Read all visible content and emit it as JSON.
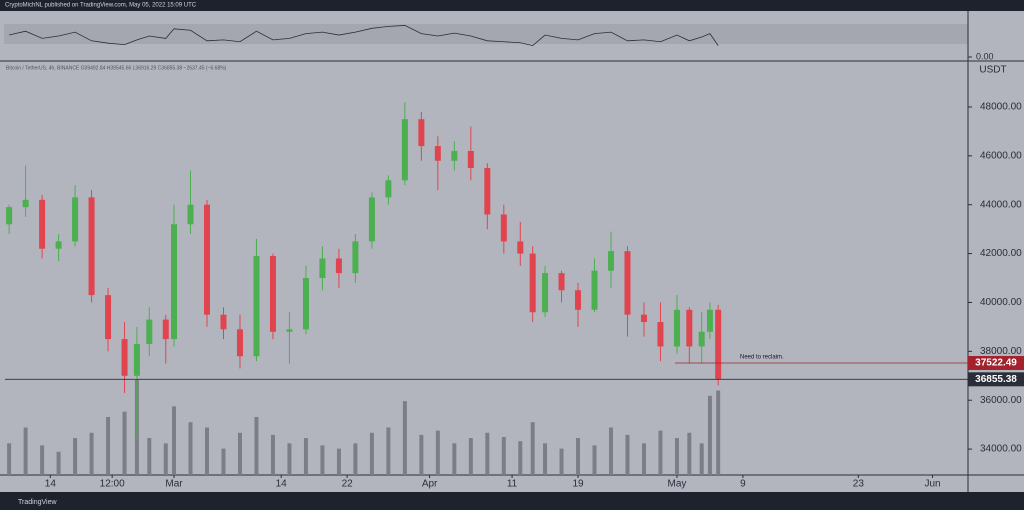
{
  "header": "CryptoMichNL published on TradingView.com, May 05, 2022 15:09 UTC",
  "footer": "TradingView",
  "chart_data": {
    "type": "candlestick",
    "legend": "Bitcoin / TetherUS, 4h, BINANCE  O39492.84  H39545.66  L36916.29  C36855.38  −2637.45 (−6.68%)",
    "y_axis_label": "USDT",
    "up_color": "#4caf50",
    "down_color": "#e0454f",
    "volume_color": "#7b7e86",
    "rsi_color": "#2a2e39",
    "x": [
      9,
      11,
      13,
      15,
      17,
      19,
      21,
      23,
      24.5,
      26,
      28,
      29,
      31,
      33,
      35,
      37,
      39,
      41,
      43,
      45,
      47,
      49,
      51,
      53,
      55,
      57,
      59,
      61,
      63,
      65,
      67,
      69,
      71,
      72.5,
      74,
      76,
      78,
      80,
      82,
      84,
      86,
      88,
      90,
      91.5,
      93,
      94,
      95
    ],
    "ohlc": [
      [
        43200,
        44000,
        42800,
        43900
      ],
      [
        43900,
        45600,
        43500,
        44200
      ],
      [
        44200,
        44400,
        41800,
        42200
      ],
      [
        42200,
        42800,
        41700,
        42500
      ],
      [
        42500,
        44800,
        42300,
        44300
      ],
      [
        44300,
        44600,
        40000,
        40300
      ],
      [
        40300,
        40600,
        38000,
        38500
      ],
      [
        38500,
        39200,
        36300,
        37000
      ],
      [
        37000,
        39000,
        34400,
        38300
      ],
      [
        38300,
        39800,
        37800,
        39300
      ],
      [
        39300,
        39500,
        37500,
        38500
      ],
      [
        38500,
        44000,
        38200,
        43200
      ],
      [
        43200,
        45400,
        42800,
        44000
      ],
      [
        44000,
        44200,
        39000,
        39500
      ],
      [
        39500,
        39800,
        38500,
        38900
      ],
      [
        38900,
        39500,
        37300,
        37800
      ],
      [
        37800,
        42600,
        37600,
        41900
      ],
      [
        41900,
        42000,
        38500,
        38800
      ],
      [
        38800,
        39600,
        37500,
        38900
      ],
      [
        38900,
        41500,
        38700,
        41000
      ],
      [
        41000,
        42300,
        40500,
        41800
      ],
      [
        41800,
        42200,
        40600,
        41200
      ],
      [
        41200,
        42800,
        40800,
        42500
      ],
      [
        42500,
        44500,
        42200,
        44300
      ],
      [
        44300,
        45200,
        44000,
        45000
      ],
      [
        45000,
        48200,
        44800,
        47500
      ],
      [
        47500,
        47800,
        45800,
        46400
      ],
      [
        46400,
        46800,
        44600,
        45800
      ],
      [
        45800,
        46600,
        45400,
        46200
      ],
      [
        46200,
        47200,
        45000,
        45500
      ],
      [
        45500,
        45700,
        43000,
        43600
      ],
      [
        43600,
        44000,
        42000,
        42500
      ],
      [
        42500,
        43300,
        41500,
        42000
      ],
      [
        42000,
        42300,
        39200,
        39600
      ],
      [
        39600,
        41500,
        39400,
        41200
      ],
      [
        41200,
        41300,
        40000,
        40500
      ],
      [
        40500,
        40800,
        39000,
        39700
      ],
      [
        39700,
        41800,
        39600,
        41300
      ],
      [
        41300,
        42900,
        40600,
        42100
      ],
      [
        42100,
        42300,
        38600,
        39500
      ],
      [
        39500,
        40000,
        38600,
        39200
      ],
      [
        39200,
        40000,
        37600,
        38200
      ],
      [
        38200,
        40300,
        37900,
        39700
      ],
      [
        39700,
        39800,
        37500,
        38200
      ],
      [
        38200,
        39600,
        37500,
        38800
      ],
      [
        38800,
        40000,
        38500,
        39700
      ],
      [
        39700,
        39900,
        36600,
        36855.38
      ]
    ],
    "volume": [
      30,
      45,
      28,
      22,
      35,
      40,
      55,
      60,
      90,
      35,
      30,
      65,
      50,
      45,
      25,
      40,
      55,
      38,
      30,
      35,
      28,
      25,
      30,
      40,
      45,
      70,
      38,
      42,
      30,
      35,
      40,
      36,
      32,
      50,
      30,
      25,
      35,
      28,
      45,
      38,
      30,
      42,
      35,
      40,
      30,
      75,
      80
    ],
    "rsi": [
      52,
      60,
      45,
      50,
      58,
      40,
      35,
      32,
      42,
      50,
      45,
      65,
      62,
      40,
      42,
      38,
      60,
      42,
      45,
      55,
      58,
      52,
      58,
      66,
      70,
      72,
      55,
      50,
      56,
      50,
      40,
      38,
      36,
      30,
      52,
      45,
      42,
      55,
      58,
      40,
      42,
      38,
      52,
      40,
      48,
      55,
      30
    ],
    "rsi_ylim": [
      0,
      100
    ],
    "rsi_yticks": [
      {
        "value": 0,
        "label": "0.00"
      }
    ],
    "xlim": [
      8.5,
      125.3
    ],
    "xticks": [
      {
        "value": 14,
        "label": "14"
      },
      {
        "value": 21.5,
        "label": "12:00"
      },
      {
        "value": 29,
        "label": "Mar"
      },
      {
        "value": 42,
        "label": "14"
      },
      {
        "value": 50,
        "label": "22"
      },
      {
        "value": 60,
        "label": "Apr"
      },
      {
        "value": 70,
        "label": "11"
      },
      {
        "value": 78,
        "label": "19"
      },
      {
        "value": 90,
        "label": "May"
      },
      {
        "value": 98,
        "label": "9"
      },
      {
        "value": 112,
        "label": "23"
      },
      {
        "value": 121,
        "label": "Jun"
      }
    ],
    "ylim": [
      32940,
      49840
    ],
    "yticks": [
      {
        "value": 34000,
        "label": "34000.00"
      },
      {
        "value": 36000,
        "label": "36000.00"
      },
      {
        "value": 38000,
        "label": "38000.00"
      },
      {
        "value": 40000,
        "label": "40000.00"
      },
      {
        "value": 42000,
        "label": "42000.00"
      },
      {
        "value": 44000,
        "label": "44000.00"
      },
      {
        "value": 46000,
        "label": "46000.00"
      },
      {
        "value": 48000,
        "label": "48000.00"
      }
    ],
    "levels": [
      {
        "value": 37522.49,
        "color": "#a3222c",
        "annotation": "Need to reclaim."
      },
      {
        "value": 36855.38,
        "color": "#2a2e39"
      }
    ]
  }
}
